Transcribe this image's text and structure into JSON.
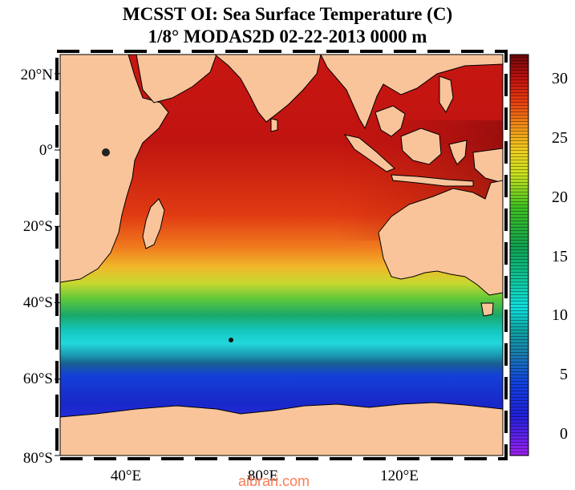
{
  "title": {
    "line1": "MCSST OI:  Sea Surface Temperature (C)",
    "line2": "1/8° MODAS2D 02-22-2013 0000 m"
  },
  "map": {
    "lat_labels": [
      "20°N",
      "0°",
      "20°S",
      "40°S",
      "60°S",
      "80°S"
    ],
    "lat_values": [
      20,
      0,
      -20,
      -40,
      -60,
      -80
    ],
    "lon_labels": [
      "40°E",
      "80°E",
      "120°E"
    ],
    "lon_values": [
      40,
      80,
      120
    ],
    "lon_range": [
      20,
      150
    ],
    "lat_range": [
      -80,
      25
    ]
  },
  "colorbar": {
    "labels": [
      "30",
      "25",
      "20",
      "15",
      "10",
      "5",
      "0"
    ],
    "values": [
      30,
      25,
      20,
      15,
      10,
      5,
      0
    ],
    "range": [
      -2,
      32
    ]
  },
  "watermark": "aibrari.com",
  "colors": {
    "land": "#f9c49a",
    "sst_warm": "#b80f0f",
    "sst_cold": "#1a2ad0"
  }
}
